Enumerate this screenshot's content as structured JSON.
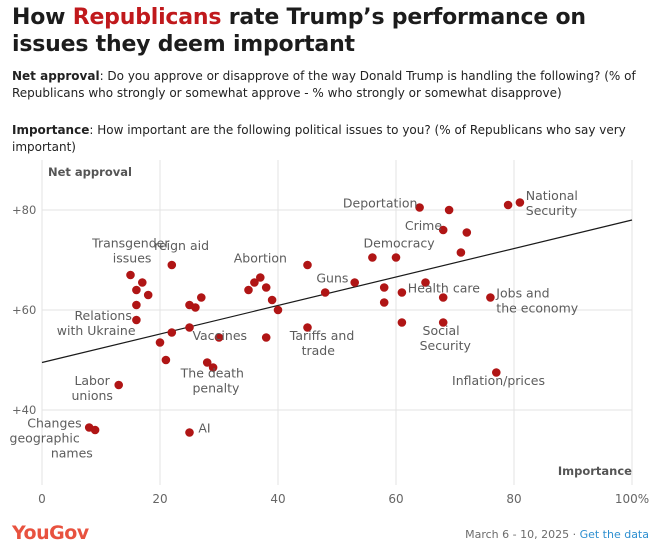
{
  "title": {
    "pre": "How ",
    "highlight": "Republicans",
    "post": " rate Trump’s performance on issues they deem important"
  },
  "desc1": {
    "label": "Net approval",
    "text": ": Do you approve or disapprove of the way Donald Trump is handling the following? (% of Republicans who strongly or somewhat approve - % who strongly or somewhat disapprove)"
  },
  "desc2": {
    "label": "Importance",
    "text": ": How important are the following political issues to you? (% of Republicans who say very important)"
  },
  "footer": {
    "logo": "YouGov",
    "date": "March 6 - 10, 2025 · ",
    "link": "Get the data"
  },
  "colors": {
    "point": "#b01515",
    "highlight": "#c0191c",
    "trend": "#1a1a1a",
    "label": "#5c5c5c"
  },
  "chart_data": {
    "type": "scatter",
    "xlabel": "Importance",
    "ylabel": "Net approval",
    "xlim": [
      0,
      100
    ],
    "ylim": [
      25,
      90
    ],
    "grid": true,
    "x_ticks": [
      0,
      20,
      40,
      60,
      80,
      100
    ],
    "x_tick_labels": [
      "0",
      "20",
      "40",
      "60",
      "80",
      "100%"
    ],
    "y_ticks": [
      40,
      60,
      80
    ],
    "y_tick_labels": [
      "+40",
      "+60",
      "+80"
    ],
    "trendline": {
      "x": [
        0,
        100
      ],
      "y": [
        49.5,
        78
      ]
    },
    "points": [
      {
        "x": 8,
        "y": 36.5
      },
      {
        "x": 9,
        "y": 36
      },
      {
        "x": 13,
        "y": 45
      },
      {
        "x": 15,
        "y": 67
      },
      {
        "x": 16,
        "y": 64
      },
      {
        "x": 16,
        "y": 61
      },
      {
        "x": 16,
        "y": 58
      },
      {
        "x": 17,
        "y": 65.5
      },
      {
        "x": 18,
        "y": 63
      },
      {
        "x": 20,
        "y": 53.5
      },
      {
        "x": 21,
        "y": 50
      },
      {
        "x": 22,
        "y": 69
      },
      {
        "x": 22,
        "y": 55.5
      },
      {
        "x": 25,
        "y": 61
      },
      {
        "x": 25,
        "y": 56.5
      },
      {
        "x": 25,
        "y": 35.5
      },
      {
        "x": 26,
        "y": 60.5
      },
      {
        "x": 27,
        "y": 62.5
      },
      {
        "x": 28,
        "y": 49.5
      },
      {
        "x": 29,
        "y": 48.5
      },
      {
        "x": 30,
        "y": 54.5
      },
      {
        "x": 35,
        "y": 64
      },
      {
        "x": 36,
        "y": 65.5
      },
      {
        "x": 37,
        "y": 66.5
      },
      {
        "x": 38,
        "y": 64.5
      },
      {
        "x": 38,
        "y": 54.5
      },
      {
        "x": 39,
        "y": 62
      },
      {
        "x": 40,
        "y": 60
      },
      {
        "x": 45,
        "y": 69
      },
      {
        "x": 45,
        "y": 56.5
      },
      {
        "x": 48,
        "y": 63.5
      },
      {
        "x": 53,
        "y": 65.5
      },
      {
        "x": 56,
        "y": 70.5
      },
      {
        "x": 58,
        "y": 64.5
      },
      {
        "x": 58,
        "y": 61.5
      },
      {
        "x": 60,
        "y": 70.5
      },
      {
        "x": 61,
        "y": 63.5
      },
      {
        "x": 61,
        "y": 57.5
      },
      {
        "x": 64,
        "y": 80.5
      },
      {
        "x": 65,
        "y": 65.5
      },
      {
        "x": 68,
        "y": 76
      },
      {
        "x": 68,
        "y": 62.5
      },
      {
        "x": 68,
        "y": 57.5
      },
      {
        "x": 69,
        "y": 80
      },
      {
        "x": 71,
        "y": 71.5
      },
      {
        "x": 72,
        "y": 75.5
      },
      {
        "x": 76,
        "y": 62.5
      },
      {
        "x": 77,
        "y": 47.5
      },
      {
        "x": 79,
        "y": 81
      },
      {
        "x": 81,
        "y": 81.5
      }
    ],
    "annotations": [
      {
        "text": "National",
        "x": 82,
        "y": 82
      },
      {
        "text": "Security",
        "x": 82,
        "y": 79
      },
      {
        "text": "Deportation",
        "x": 51,
        "y": 80.5
      },
      {
        "text": "Crime",
        "x": 61.5,
        "y": 76
      },
      {
        "text": "Democracy",
        "x": 54.5,
        "y": 72.5
      },
      {
        "text": "Transgender",
        "x": 8.5,
        "y": 72.5
      },
      {
        "text": "issues",
        "x": 12,
        "y": 69.5
      },
      {
        "text": "reign aid",
        "x": 19,
        "y": 72
      },
      {
        "text": "Abortion",
        "x": 32.5,
        "y": 69.5
      },
      {
        "text": "Guns",
        "x": 46.5,
        "y": 65.5
      },
      {
        "text": "Health care",
        "x": 62,
        "y": 63.5
      },
      {
        "text": "Jobs and",
        "x": 77,
        "y": 62.5
      },
      {
        "text": "the economy",
        "x": 77,
        "y": 59.5
      },
      {
        "text": "Relations",
        "x": 5.5,
        "y": 58
      },
      {
        "text": "with Ukraine",
        "x": 2.5,
        "y": 55
      },
      {
        "text": "Vaccines",
        "x": 25.5,
        "y": 54
      },
      {
        "text": "Tariffs and",
        "x": 42,
        "y": 54
      },
      {
        "text": "trade",
        "x": 44,
        "y": 51
      },
      {
        "text": "Social",
        "x": 64.5,
        "y": 55
      },
      {
        "text": "Security",
        "x": 64,
        "y": 52
      },
      {
        "text": "The death",
        "x": 23.5,
        "y": 46.5
      },
      {
        "text": "penalty",
        "x": 25.5,
        "y": 43.5
      },
      {
        "text": "Inflation/prices",
        "x": 69.5,
        "y": 45
      },
      {
        "text": "Labor",
        "x": 5.5,
        "y": 45
      },
      {
        "text": "unions",
        "x": 5,
        "y": 42
      },
      {
        "text": "AI",
        "x": 26.5,
        "y": 35.5
      },
      {
        "text": "Changes",
        "x": -2.5,
        "y": 36.5
      },
      {
        "text": "geographic",
        "x": -5.5,
        "y": 33.5
      },
      {
        "text": "names",
        "x": 1.5,
        "y": 30.5
      }
    ]
  }
}
